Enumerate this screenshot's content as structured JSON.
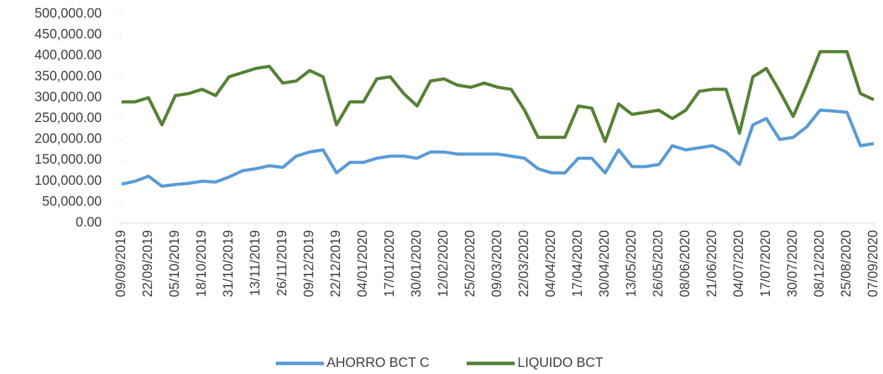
{
  "chart_data": {
    "type": "line",
    "categories": [
      "09/09/2019",
      null,
      "22/09/2019",
      null,
      "05/10/2019",
      null,
      "18/10/2019",
      null,
      "31/10/2019",
      null,
      "13/11/2019",
      null,
      "26/11/2019",
      null,
      "09/12/2019",
      null,
      "22/12/2019",
      null,
      "04/01/2020",
      null,
      "17/01/2020",
      null,
      "30/01/2020",
      null,
      "12/02/2020",
      null,
      "25/02/2020",
      null,
      "09/03/2020",
      null,
      "22/03/2020",
      null,
      "04/04/2020",
      null,
      "17/04/2020",
      null,
      "30/04/2020",
      null,
      "13/05/2020",
      null,
      "26/05/2020",
      null,
      "08/06/2020",
      null,
      "21/06/2020",
      null,
      "04/07/2020",
      null,
      "17/07/2020",
      null,
      "30/07/2020",
      null,
      "08/12/2020",
      null,
      "25/08/2020",
      null,
      "07/09/2020"
    ],
    "series": [
      {
        "name": "AHORRO BCT C",
        "color": "#5b9bd5",
        "values": [
          93000,
          100000,
          112000,
          88000,
          92000,
          95000,
          100000,
          98000,
          110000,
          125000,
          130000,
          137000,
          133000,
          160000,
          170000,
          175000,
          120000,
          145000,
          145000,
          155000,
          160000,
          160000,
          155000,
          170000,
          170000,
          165000,
          165000,
          165000,
          165000,
          160000,
          155000,
          130000,
          120000,
          120000,
          155000,
          155000,
          120000,
          175000,
          135000,
          135000,
          140000,
          185000,
          175000,
          180000,
          185000,
          170000,
          140000,
          235000,
          250000,
          200000,
          205000,
          230000,
          270000,
          268000,
          265000,
          185000,
          190000
        ]
      },
      {
        "name": "LIQUIDO BCT",
        "color": "#548235",
        "values": [
          290000,
          290000,
          300000,
          235000,
          305000,
          310000,
          320000,
          305000,
          350000,
          360000,
          370000,
          375000,
          335000,
          340000,
          365000,
          350000,
          235000,
          290000,
          290000,
          345000,
          350000,
          310000,
          280000,
          340000,
          345000,
          330000,
          325000,
          335000,
          325000,
          320000,
          270000,
          205000,
          205000,
          205000,
          280000,
          275000,
          195000,
          285000,
          260000,
          265000,
          270000,
          250000,
          270000,
          315000,
          320000,
          320000,
          215000,
          350000,
          370000,
          315000,
          255000,
          330000,
          410000,
          410000,
          410000,
          310000,
          295000
        ]
      }
    ],
    "ylim": [
      0,
      500000
    ],
    "yticks": [
      {
        "value": 0,
        "label": "0.00"
      },
      {
        "value": 50000,
        "label": "50,000.00"
      },
      {
        "value": 100000,
        "label": "100,000.00"
      },
      {
        "value": 150000,
        "label": "150,000.00"
      },
      {
        "value": 200000,
        "label": "200,000.00"
      },
      {
        "value": 250000,
        "label": "250,000.00"
      },
      {
        "value": 300000,
        "label": "300,000.00"
      },
      {
        "value": 350000,
        "label": "350,000.00"
      },
      {
        "value": 400000,
        "label": "400,000.00"
      },
      {
        "value": 450000,
        "label": "450,000.00"
      },
      {
        "value": 500000,
        "label": "500,000.00"
      }
    ],
    "grid": false,
    "legend": "bottom"
  }
}
